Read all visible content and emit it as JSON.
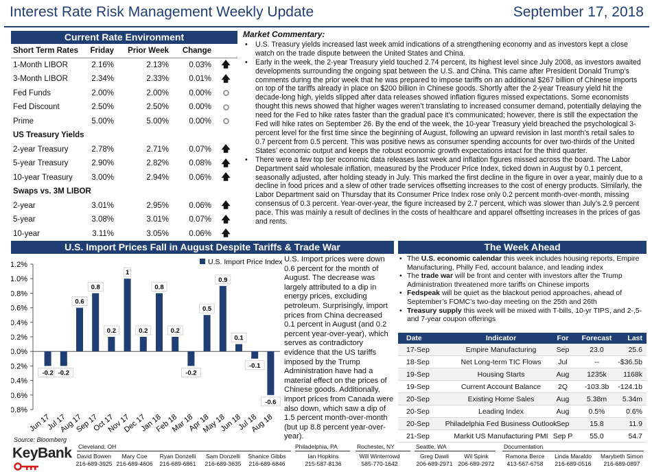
{
  "header": {
    "title": "Interest Rate Risk Management Weekly Update",
    "date": "September 17, 2018"
  },
  "rates": {
    "band": "Current Rate Environment",
    "columns": [
      "Short Term Rates",
      "Friday",
      "Prior Week",
      "Change"
    ],
    "rows": [
      {
        "type": "row",
        "name": "1-Month LIBOR",
        "friday": "2.16%",
        "prior": "2.13%",
        "change": "0.03%",
        "dir": "up"
      },
      {
        "type": "row",
        "name": "3-Month LIBOR",
        "friday": "2.34%",
        "prior": "2.33%",
        "change": "0.01%",
        "dir": "up"
      },
      {
        "type": "row",
        "name": "Fed Funds",
        "friday": "2.00%",
        "prior": "2.00%",
        "change": "0.00%",
        "dir": "flat"
      },
      {
        "type": "row",
        "name": "Fed Discount",
        "friday": "2.50%",
        "prior": "2.50%",
        "change": "0.00%",
        "dir": "flat"
      },
      {
        "type": "row",
        "name": "Prime",
        "friday": "5.00%",
        "prior": "5.00%",
        "change": "0.00%",
        "dir": "flat"
      },
      {
        "type": "section",
        "name": "US Treasury Yields"
      },
      {
        "type": "row",
        "name": "2-year Treasury",
        "friday": "2.78%",
        "prior": "2.71%",
        "change": "0.07%",
        "dir": "up"
      },
      {
        "type": "row",
        "name": "5-year Treasury",
        "friday": "2.90%",
        "prior": "2.82%",
        "change": "0.08%",
        "dir": "up"
      },
      {
        "type": "row",
        "name": "10-year Treasury",
        "friday": "3.00%",
        "prior": "2.94%",
        "change": "0.06%",
        "dir": "up"
      },
      {
        "type": "section",
        "name": "Swaps vs. 3M LIBOR"
      },
      {
        "type": "row",
        "name": "2-year",
        "friday": "3.01%",
        "prior": "2.95%",
        "change": "0.06%",
        "dir": "up"
      },
      {
        "type": "row",
        "name": "5-year",
        "friday": "3.08%",
        "prior": "3.01%",
        "change": "0.07%",
        "dir": "up"
      },
      {
        "type": "row",
        "name": "10-year",
        "friday": "3.11%",
        "prior": "3.05%",
        "change": "0.06%",
        "dir": "up"
      }
    ]
  },
  "commentary": {
    "heading": "Market Commentary:",
    "bullets": [
      "U.S. Treasury yields increased last week amid indications of a strengthening economy and as investors kept a close watch on the trade dispute between the United States and China.",
      "Early in the week, the 2-year Treasury yield touched 2.74 percent, its highest level since July 2008, as investors awaited developments surrounding the ongoing spat between the U.S. and China. This came after President Donald Trump’s comments during the prior week that he was prepared to impose tariffs on an additional $267 billion of Chinese imports on top of the tariffs already in place on $200 billion in Chinese goods. Shortly after the 2-year Treasury yield hit the decade-long high, yields slipped after data releases showed inflation figures missed expectations. Some economists thought this news showed that higher wages weren’t translating to increased consumer demand, potentially delaying the need for the Fed to hike rates faster than the gradual pace it’s communicated; however, there is still the expectation the Fed will hike rates on September 26. By the end of the week, the 10-year Treasury yield breached the psychological 3-percent level for the first time since the beginning of August, following an upward revision in last month’s retail sales to 0.7 percent from 0.5 percent. This was positive news as consumer spending accounts for over two-thirds of the United States’ economic output and keeps the robust economic growth expectations intact for the third quarter.",
      "There were a few top tier economic data releases last week and inflation figures missed across the board. The Labor Department said wholesale inflation, measured by the Producer Price Index, ticked down in August by 0.1 percent, seasonally adjusted, after holding steady in July. This marked the first decline in the figure in over a year, mainly due to a decline in food prices and a slew of other trade services offsetting increases to the cost of energy products. Similarly, the Labor Department said on Thursday that its Consumer Price Index rose only 0.2 percent month-over-month, missing consensus of 0.3 percent. Year-over-year, the figure increased by 2.7 percent, which was slower than July’s 2.9 percent pace. This was mainly a result of declines in the costs of healthcare and apparel offsetting increases in the prices of gas and rents."
    ]
  },
  "chart_section": {
    "band": "U.S. Import Prices Fall in August Despite Tariffs & Trade War",
    "text": "U.S. Import prices were down 0.6 percent for the month of August. The decrease was largely attributed to a dip in energy prices, excluding petroleum. Surprisingly, import prices from China decreased 0.1 percent in August (and 0.2 percent year-over-year), which serves as contradictory evidence that the US tariffs imposed by the Trump Administration have had a material effect on the prices of Chinese goods. Additionally, import prices from Canada were also down, which saw a dip of 1.5 percent month-over-month (but up 8.8 percent year-over-year)."
  },
  "chart_data": {
    "type": "bar",
    "categories": [
      "Jun 17",
      "Jul 17",
      "Aug 17",
      "Sep 17",
      "Oct 17",
      "Nov 17",
      "Dec 17",
      "Jan 18",
      "Feb 18",
      "Mar 18",
      "Apr 18",
      "May 18",
      "Jun 18",
      "Jul 18",
      "Aug 18"
    ],
    "series": [
      {
        "name": "U.S. Import Price Index",
        "values": [
          -0.2,
          -0.2,
          0.6,
          0.8,
          0.2,
          1,
          0.2,
          0.8,
          0.2,
          -0.2,
          0.5,
          0.9,
          0.1,
          -0.1,
          -0.6
        ]
      }
    ],
    "labels": [
      "-0.2",
      "-0.2",
      "0.6",
      "0.8",
      "0.2",
      "1",
      "0.2",
      "0.8",
      "0.2",
      "-0.2",
      "0.5",
      "0.9",
      "0.1",
      "-0.1",
      "-0.6"
    ],
    "yticks": [
      "1.2%",
      "1.0%",
      "0.8%",
      "0.6%",
      "0.4%",
      "0.2%",
      "0.0%",
      "-0.2%",
      "-0.4%",
      "-0.6%",
      "-0.8%"
    ],
    "ylim": [
      -0.8,
      1.2
    ],
    "legend": "top-right",
    "bar_color": "#1f3f74"
  },
  "week_ahead": {
    "band": "The Week Ahead",
    "bullets": [
      {
        "pre": "The ",
        "bold": "U.S. economic calendar",
        "post": " this week includes housing reports, Empire Manufacturing, Philly Fed, account balance, and leading index"
      },
      {
        "pre": "The ",
        "bold": "trade war",
        "post": " will be front and center with investors after the Trump Administration threatened more tariffs on Chinese imports"
      },
      {
        "pre": "",
        "bold": "Fedspeak",
        "post": " will be quiet as the blackout period approaches, ahead of September’s FOMC’s two-day meeting on the 25th and 26th"
      },
      {
        "pre": "",
        "bold": "Treasury supply",
        "post": " this week will be mixed with T-bills, 10-yr TIPS, and 2-,5-and 7-year coupon offerings"
      }
    ],
    "columns": [
      "Date",
      "Indicator",
      "For",
      "Forecast",
      "Last"
    ],
    "rows": [
      [
        "17-Sep",
        "Empire Manufacturing",
        "Sep",
        "23.0",
        "25.6"
      ],
      [
        "18-Sep",
        "Net Long-term TIC Flows",
        "Jul",
        "--",
        "-$36.5b"
      ],
      [
        "19-Sep",
        "Housing Starts",
        "Aug",
        "1235k",
        "1168k"
      ],
      [
        "19-Sep",
        "Current Account Balance",
        "2Q",
        "-103.3b",
        "-124.1b"
      ],
      [
        "20-Sep",
        "Existing Home Sales",
        "Aug",
        "5.38m",
        "5.34m"
      ],
      [
        "20-Sep",
        "Leading Index",
        "Aug",
        "0.5%",
        "0.6%"
      ],
      [
        "20-Sep",
        "Philadelphia Fed Business Outlook",
        "Sep",
        "15.8",
        "11.9"
      ],
      [
        "21-Sep",
        "Markit US Manufacturing PMI",
        "Sep P",
        "55.0",
        "54.7"
      ]
    ]
  },
  "footer": {
    "source": "Source: Bloomberg",
    "logo": "KeyBank",
    "locations": [
      "Cleveland, OH",
      "Philadelphia, PA",
      "Rochester, NY",
      "Seattle, WA",
      "Documentation"
    ],
    "contacts": [
      {
        "name": "David Bowen",
        "phone": "216-689-3925"
      },
      {
        "name": "Mary Coe",
        "phone": "216-689-4606"
      },
      {
        "name": "Ryan Donzelli",
        "phone": "216-689-6861"
      },
      {
        "name": "Sam Donzelli",
        "phone": "216-689-3635"
      },
      {
        "name": "Shanice Gibbs",
        "phone": "216-689-6846"
      },
      {
        "name": "Ian Hopkins",
        "phone": "215-587-8136"
      },
      {
        "name": "Will Winterrowd",
        "phone": "585-770-1642"
      },
      {
        "name": "Greg Dawli",
        "phone": "206-689-2971"
      },
      {
        "name": "Wil Spink",
        "phone": "206-689-2972"
      },
      {
        "name": "Ramona Berce",
        "phone": "413-567-6758"
      },
      {
        "name": "Linda Maraldo",
        "phone": "216-689-0516"
      },
      {
        "name": "Marybeth Simon",
        "phone": "216-689-0897"
      }
    ],
    "brand_color": "#d11b1b"
  }
}
